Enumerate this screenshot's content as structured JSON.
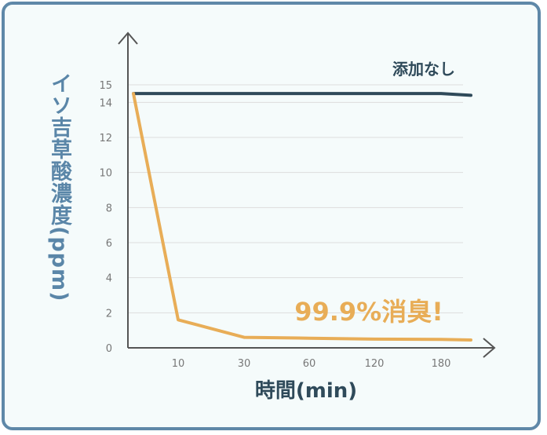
{
  "chart_data": {
    "type": "line",
    "xlabel": "時間(min)",
    "ylabel": "イソ吉草酸濃度(ppm)",
    "categories": [
      "",
      "10",
      "30",
      "60",
      "120",
      "180",
      ""
    ],
    "ylim": [
      0,
      15
    ],
    "yticks": [
      0,
      2,
      4,
      6,
      8,
      10,
      12,
      14,
      15
    ],
    "grid": true,
    "series": [
      {
        "name": "添加なし",
        "color": "#2f4a5a",
        "values": [
          14.5,
          14.5,
          14.5,
          14.5,
          14.5,
          14.5,
          14.4
        ]
      },
      {
        "name": "",
        "color": "#e8ad57",
        "values": [
          14.5,
          1.6,
          0.6,
          0.55,
          0.5,
          0.48,
          0.45
        ]
      }
    ],
    "annotation": "99.9%消臭!",
    "colors": {
      "axis": "#555555",
      "grid": "#dddddd",
      "ylabel": "#5a86a8",
      "xlabel": "#2f4a5a"
    }
  }
}
